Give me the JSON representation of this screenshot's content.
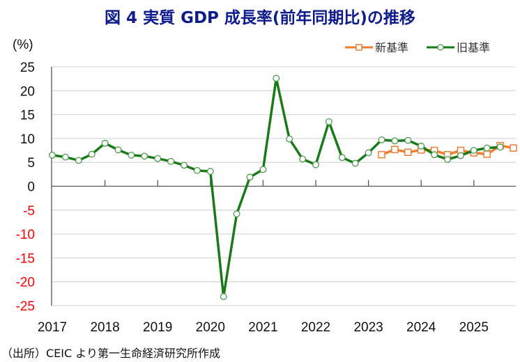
{
  "chart_data": {
    "type": "line",
    "title": "図 4  実質 GDP 成長率(前年同期比)の推移",
    "ylabel": "(%)",
    "ylim": [
      -25,
      25
    ],
    "yticks": [
      25,
      20,
      15,
      10,
      5,
      0,
      -5,
      -10,
      -15,
      -20,
      -25
    ],
    "negative_tick_color": "#ff0000",
    "grid": true,
    "legend_position": "top-right",
    "xtick_labels": [
      "2017",
      "2018",
      "2019",
      "2020",
      "2021",
      "2022",
      "2023",
      "2024",
      "2025"
    ],
    "x": [
      "2017Q1",
      "2017Q2",
      "2017Q3",
      "2017Q4",
      "2018Q1",
      "2018Q2",
      "2018Q3",
      "2018Q4",
      "2019Q1",
      "2019Q2",
      "2019Q3",
      "2019Q4",
      "2020Q1",
      "2020Q2",
      "2020Q3",
      "2020Q4",
      "2021Q1",
      "2021Q2",
      "2021Q3",
      "2021Q4",
      "2022Q1",
      "2022Q2",
      "2022Q3",
      "2022Q4",
      "2023Q1",
      "2023Q2",
      "2023Q3",
      "2023Q4",
      "2024Q1",
      "2024Q2",
      "2024Q3",
      "2024Q4",
      "2025Q1",
      "2025Q2",
      "2025Q3",
      "2025Q4"
    ],
    "series": [
      {
        "name": "新基準",
        "color": "#ed7d31",
        "marker": "square",
        "values": [
          null,
          null,
          null,
          null,
          null,
          null,
          null,
          null,
          null,
          null,
          null,
          null,
          null,
          null,
          null,
          null,
          null,
          null,
          null,
          null,
          null,
          null,
          null,
          null,
          null,
          6.6,
          7.7,
          7.1,
          7.6,
          7.5,
          6.6,
          7.5,
          7.0,
          6.7,
          8.5,
          8.0
        ]
      },
      {
        "name": "旧基準",
        "color": "#1a7a1a",
        "marker": "circle",
        "values": [
          6.5,
          6.1,
          5.4,
          6.7,
          9.0,
          7.6,
          6.5,
          6.3,
          5.8,
          5.2,
          4.4,
          3.3,
          3.1,
          -23.1,
          -5.8,
          1.9,
          3.5,
          22.6,
          9.9,
          5.7,
          4.5,
          13.5,
          6.0,
          4.8,
          7.0,
          9.7,
          9.5,
          9.6,
          8.4,
          6.6,
          5.6,
          6.4,
          7.5,
          8.0,
          8.2,
          null
        ]
      }
    ]
  },
  "source": "（出所）CEIC より第一生命経済研究所作成"
}
